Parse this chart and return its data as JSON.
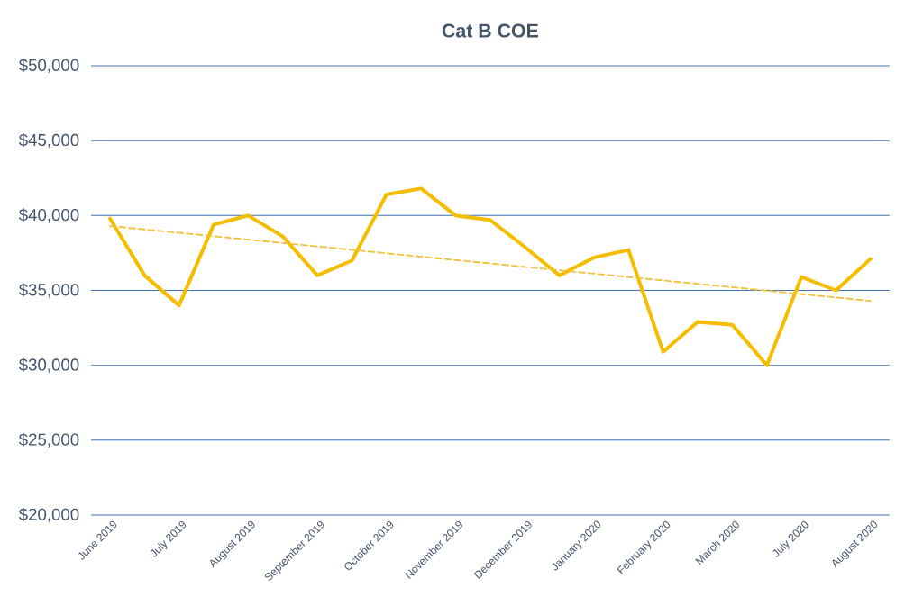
{
  "chart_data": {
    "type": "line",
    "title": "Cat B COE",
    "categories": [
      "June 2019",
      null,
      "July 2019",
      null,
      "August 2019",
      null,
      "September 2019",
      null,
      "October 2019",
      null,
      "November 2019",
      null,
      "December 2019",
      null,
      "January 2020",
      null,
      "February 2020",
      null,
      "March 2020",
      null,
      "July 2020",
      null,
      "August 2020"
    ],
    "series": [
      {
        "color": "#f5bd00",
        "line_style": "solid",
        "values": [
          39800,
          36000,
          34000,
          39400,
          40000,
          38600,
          36000,
          37000,
          41400,
          41800,
          40000,
          39700,
          37900,
          36000,
          37200,
          37700,
          30900,
          32900,
          32700,
          30000,
          35900,
          35000,
          37100
        ]
      },
      {
        "color": "#f2c341",
        "line_style": "dashed",
        "values": [
          39300,
          null,
          null,
          null,
          null,
          null,
          null,
          null,
          null,
          null,
          null,
          null,
          null,
          null,
          null,
          null,
          null,
          null,
          null,
          null,
          null,
          null,
          34300
        ]
      }
    ],
    "ylim": [
      20000,
      50000
    ],
    "yticks": [
      {
        "value": 20000,
        "label": "$20,000"
      },
      {
        "value": 25000,
        "label": "$25,000"
      },
      {
        "value": 30000,
        "label": "$30,000"
      },
      {
        "value": 35000,
        "label": "$35,000"
      },
      {
        "value": 40000,
        "label": "$40,000"
      },
      {
        "value": 45000,
        "label": "$45,000"
      },
      {
        "value": 50000,
        "label": "$50,000"
      }
    ],
    "grid": "y",
    "marker": "none"
  }
}
